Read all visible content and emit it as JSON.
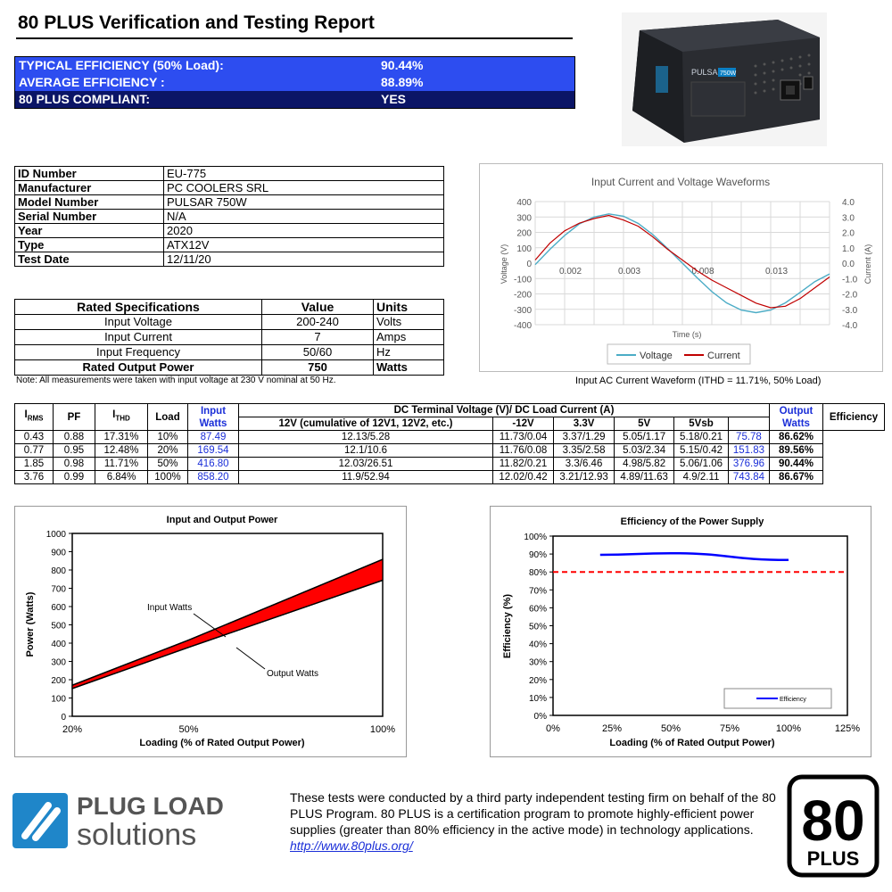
{
  "report": {
    "title": "80 PLUS Verification and Testing Report"
  },
  "summary": [
    {
      "label": "TYPICAL EFFICIENCY (50% Load):",
      "value": "90.44%",
      "color": "#2d4df0"
    },
    {
      "label": "AVERAGE EFFICIENCY :",
      "value": "88.89%",
      "color": "#2d4df0"
    },
    {
      "label": "80 PLUS COMPLIANT:",
      "value": "YES",
      "color": "#0b1566"
    }
  ],
  "product_image": {
    "brand_text": "PULSAR",
    "model_badge": "750W"
  },
  "identification": [
    {
      "key": "ID Number",
      "value": "EU-775"
    },
    {
      "key": "Manufacturer",
      "value": "PC COOLERS SRL"
    },
    {
      "key": "Model Number",
      "value": "PULSAR 750W"
    },
    {
      "key": "Serial Number",
      "value": "N/A"
    },
    {
      "key": "Year",
      "value": "2020"
    },
    {
      "key": "Type",
      "value": "ATX12V"
    },
    {
      "key": "Test Date",
      "value": "12/11/20"
    }
  ],
  "rated_specs": {
    "headers": [
      "Rated Specifications",
      "Value",
      "Units"
    ],
    "rows": [
      {
        "name": "Input Voltage",
        "value": "200-240",
        "unit": "Volts"
      },
      {
        "name": "Input Current",
        "value": "7",
        "unit": "Amps"
      },
      {
        "name": "Input Frequency",
        "value": "50/60",
        "unit": "Hz"
      },
      {
        "name": "Rated Output Power",
        "value": "750",
        "unit": "Watts"
      }
    ]
  },
  "note": "Note: All measurements were taken with input voltage at 230 V nominal at 50 Hz.",
  "waveform_caption": "Input AC Current Waveform (ITHD = 11.71%, 50% Load)",
  "test_table": {
    "headers": {
      "irms": "I",
      "irms_sub": "RMS",
      "pf": "PF",
      "ithd": "I",
      "ithd_sub": "THD",
      "load": "Load",
      "input_watts": "Input Watts",
      "dc_group": "DC Terminal Voltage (V)/ DC Load Current (A)",
      "v12": "12V (cumulative of 12V1, 12V2, etc.)",
      "vneg12": "-12V",
      "v33": "3.3V",
      "v5": "5V",
      "v5sb": "5Vsb",
      "output_watts": "Output Watts",
      "efficiency": "Efficiency"
    },
    "rows": [
      {
        "irms": "0.43",
        "pf": "0.88",
        "ithd": "17.31%",
        "load": "10%",
        "input_watts": "87.49",
        "v12": "12.13/5.28",
        "vneg12": "11.73/0.04",
        "v33": "3.37/1.29",
        "v5": "5.05/1.17",
        "v5sb": "5.18/0.21",
        "output_watts": "75.78",
        "efficiency": "86.62%"
      },
      {
        "irms": "0.77",
        "pf": "0.95",
        "ithd": "12.48%",
        "load": "20%",
        "input_watts": "169.54",
        "v12": "12.1/10.6",
        "vneg12": "11.76/0.08",
        "v33": "3.35/2.58",
        "v5": "5.03/2.34",
        "v5sb": "5.15/0.42",
        "output_watts": "151.83",
        "efficiency": "89.56%"
      },
      {
        "irms": "1.85",
        "pf": "0.98",
        "ithd": "11.71%",
        "load": "50%",
        "input_watts": "416.80",
        "v12": "12.03/26.51",
        "vneg12": "11.82/0.21",
        "v33": "3.3/6.46",
        "v5": "4.98/5.82",
        "v5sb": "5.06/1.06",
        "output_watts": "376.96",
        "efficiency": "90.44%"
      },
      {
        "irms": "3.76",
        "pf": "0.99",
        "ithd": "6.84%",
        "load": "100%",
        "input_watts": "858.20",
        "v12": "11.9/52.94",
        "vneg12": "12.02/0.42",
        "v33": "3.21/12.93",
        "v5": "4.89/11.63",
        "v5sb": "4.9/2.11",
        "output_watts": "743.84",
        "efficiency": "86.67%"
      }
    ]
  },
  "footer": {
    "logo_line1": "PLUG LOAD",
    "logo_line2": "solutions",
    "text": "These tests were conducted by a third party independent testing firm on behalf of the 80 PLUS Program. 80 PLUS is a certification program to promote highly-efficient power supplies (greater than 80% efficiency in the active mode) in technology applications.",
    "link": "http://www.80plus.org/",
    "badge_number": "80",
    "badge_text": "PLUS"
  },
  "chart_data": [
    {
      "type": "line",
      "title": "Input Current and Voltage Waveforms",
      "xlabel": "Time (s)",
      "ylabel": "Voltage (V)",
      "y2label": "Current (A)",
      "x_ticks": [
        "0.002",
        "0.003",
        "0.008",
        "0.013"
      ],
      "xlim": [
        0,
        0.02
      ],
      "ylim": [
        -400,
        400
      ],
      "y_ticks": [
        400,
        300,
        200,
        100,
        0,
        -100,
        -200,
        -300,
        -400
      ],
      "y_tick_labels": [
        "400",
        "300",
        "200",
        "100",
        "0",
        "-100",
        "-200",
        "-300",
        "-400"
      ],
      "y2lim": [
        -4,
        4
      ],
      "y2_ticks": [
        4,
        3,
        2,
        1,
        0,
        -1,
        -2,
        -3,
        -4
      ],
      "y2_tick_labels": [
        "4.0",
        "3.0",
        "2.0",
        "1.0",
        "0.0",
        "-1.0",
        "-2.0",
        "-3.0",
        "-4.0"
      ],
      "legend": "bottom",
      "grid": true,
      "series": [
        {
          "name": "Voltage",
          "color": "#4bacc6",
          "axis": "left",
          "x": [
            0,
            0.001,
            0.002,
            0.003,
            0.004,
            0.005,
            0.006,
            0.007,
            0.008,
            0.009,
            0.01,
            0.011,
            0.012,
            0.013,
            0.014,
            0.015,
            0.016,
            0.017,
            0.018,
            0.019,
            0.02
          ],
          "y": [
            -10,
            90,
            180,
            255,
            300,
            320,
            305,
            258,
            185,
            95,
            0,
            -95,
            -185,
            -258,
            -305,
            -322,
            -305,
            -258,
            -190,
            -120,
            -70
          ]
        },
        {
          "name": "Current",
          "color": "#c00000",
          "axis": "right",
          "x": [
            0,
            0.001,
            0.002,
            0.003,
            0.004,
            0.005,
            0.006,
            0.007,
            0.008,
            0.009,
            0.01,
            0.011,
            0.012,
            0.013,
            0.014,
            0.015,
            0.016,
            0.017,
            0.018,
            0.019,
            0.02
          ],
          "y": [
            0.2,
            1.3,
            2.1,
            2.6,
            2.9,
            3.1,
            2.8,
            2.4,
            1.7,
            0.9,
            0.2,
            -0.5,
            -1.1,
            -1.6,
            -2.1,
            -2.6,
            -2.9,
            -2.8,
            -2.3,
            -1.6,
            -0.9
          ]
        }
      ]
    },
    {
      "type": "area",
      "title": "Input and Output Power",
      "xlabel": "Loading (% of Rated Output Power)",
      "ylabel": "Power (Watts)",
      "categories": [
        "20%",
        "50%",
        "100%"
      ],
      "x": [
        20,
        50,
        100
      ],
      "xlim": [
        20,
        100
      ],
      "ylim": [
        0,
        1000
      ],
      "y_ticks": [
        0,
        100,
        200,
        300,
        400,
        500,
        600,
        700,
        800,
        900,
        1000
      ],
      "y_tick_labels": [
        "0",
        "100",
        "200",
        "300",
        "400",
        "500",
        "600",
        "700",
        "800",
        "900",
        "1000"
      ],
      "annotations": [
        "Input Watts",
        "Output Watts"
      ],
      "fill_color": "#ff0000",
      "series": [
        {
          "name": "Input Watts",
          "values": [
            169.54,
            416.8,
            858.2
          ]
        },
        {
          "name": "Output Watts",
          "values": [
            151.83,
            376.96,
            743.84
          ]
        }
      ]
    },
    {
      "type": "line",
      "title": "Efficiency of the Power Supply",
      "xlabel": "Loading (% of Rated Output Power)",
      "ylabel": "Efficiency (%)",
      "x_ticks": [
        "0%",
        "25%",
        "50%",
        "75%",
        "100%",
        "125%"
      ],
      "xlim": [
        0,
        125
      ],
      "ylim": [
        0,
        100
      ],
      "y_ticks": [
        0,
        10,
        20,
        30,
        40,
        50,
        60,
        70,
        80,
        90,
        100
      ],
      "y_tick_labels": [
        "0%",
        "10%",
        "20%",
        "30%",
        "40%",
        "50%",
        "60%",
        "70%",
        "80%",
        "90%",
        "100%"
      ],
      "legend": "bottom-right",
      "threshold": 80,
      "threshold_color": "#ff0000",
      "series": [
        {
          "name": "Efficiency",
          "color": "#0000ff",
          "x": [
            20,
            50,
            100
          ],
          "y": [
            89.56,
            90.44,
            86.67
          ]
        }
      ]
    }
  ]
}
